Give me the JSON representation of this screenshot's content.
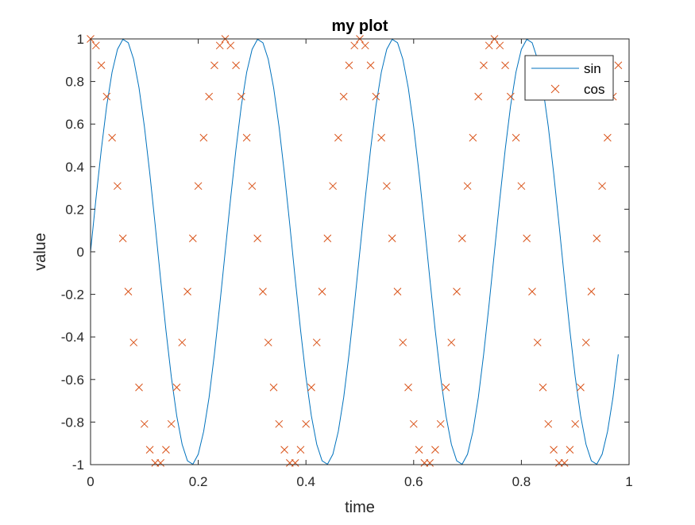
{
  "chart_data": {
    "type": "line",
    "title": "my plot",
    "xlabel": "time",
    "ylabel": "value",
    "xlim": [
      0,
      1
    ],
    "ylim": [
      -1,
      1
    ],
    "xticks": [
      0,
      0.2,
      0.4,
      0.6,
      0.8,
      1
    ],
    "xtick_labels": [
      "0",
      "0.2",
      "0.4",
      "0.6",
      "0.8",
      "1"
    ],
    "yticks": [
      -1,
      -0.8,
      -0.6,
      -0.4,
      -0.2,
      0,
      0.2,
      0.4,
      0.6,
      0.8,
      1
    ],
    "ytick_labels": [
      "-1",
      "-0.8",
      "-0.6",
      "-0.4",
      "-0.2",
      "0",
      "0.2",
      "0.4",
      "0.6",
      "0.8",
      "1"
    ],
    "grid": false,
    "legend": {
      "placement": "top-right",
      "entries": [
        "sin",
        "cos"
      ]
    },
    "series": [
      {
        "name": "sin",
        "style": "line",
        "color": "#0072BD",
        "x": [
          0,
          0.01,
          0.02,
          0.03,
          0.04,
          0.05,
          0.06,
          0.07,
          0.08,
          0.09,
          0.1,
          0.11,
          0.12,
          0.13,
          0.14,
          0.15,
          0.16,
          0.17,
          0.18,
          0.19,
          0.2,
          0.21,
          0.22,
          0.23,
          0.24,
          0.25,
          0.26,
          0.27,
          0.28,
          0.29,
          0.3,
          0.31,
          0.32,
          0.33,
          0.34,
          0.35,
          0.36,
          0.37,
          0.38,
          0.39,
          0.4,
          0.41,
          0.42,
          0.43,
          0.44,
          0.45,
          0.46,
          0.47,
          0.48,
          0.49,
          0.5,
          0.51,
          0.52,
          0.53,
          0.54,
          0.55,
          0.56,
          0.57,
          0.58,
          0.59,
          0.6,
          0.61,
          0.62,
          0.63,
          0.64,
          0.65,
          0.66,
          0.67,
          0.68,
          0.69,
          0.7,
          0.71,
          0.72,
          0.73,
          0.74,
          0.75,
          0.76,
          0.77,
          0.78,
          0.79,
          0.8,
          0.81,
          0.82,
          0.83,
          0.84,
          0.85,
          0.86,
          0.87,
          0.88,
          0.89,
          0.9,
          0.91,
          0.92,
          0.93,
          0.94,
          0.95,
          0.96,
          0.97,
          0.98
        ],
        "y": [
          0,
          0.249,
          0.482,
          0.685,
          0.844,
          0.951,
          0.998,
          0.982,
          0.905,
          0.771,
          0.588,
          0.368,
          0.125,
          -0.125,
          -0.368,
          -0.588,
          -0.771,
          -0.905,
          -0.982,
          -0.998,
          -0.951,
          -0.844,
          -0.685,
          -0.482,
          -0.249,
          0,
          0.249,
          0.482,
          0.685,
          0.844,
          0.951,
          0.998,
          0.982,
          0.905,
          0.771,
          0.588,
          0.368,
          0.125,
          -0.125,
          -0.368,
          -0.588,
          -0.771,
          -0.905,
          -0.982,
          -0.998,
          -0.951,
          -0.844,
          -0.685,
          -0.482,
          -0.249,
          0,
          0.249,
          0.482,
          0.685,
          0.844,
          0.951,
          0.998,
          0.982,
          0.905,
          0.771,
          0.588,
          0.368,
          0.125,
          -0.125,
          -0.368,
          -0.588,
          -0.771,
          -0.905,
          -0.982,
          -0.998,
          -0.951,
          -0.844,
          -0.685,
          -0.482,
          -0.249,
          0,
          0.249,
          0.482,
          0.685,
          0.844,
          0.951,
          0.998,
          0.982,
          0.905,
          0.771,
          0.588,
          0.368,
          0.125,
          -0.125,
          -0.368,
          -0.588,
          -0.771,
          -0.905,
          -0.982,
          -0.998,
          -0.951,
          -0.844,
          -0.685,
          -0.482
        ]
      },
      {
        "name": "cos",
        "style": "marker-x",
        "color": "#D95319",
        "x": [
          0,
          0.01,
          0.02,
          0.03,
          0.04,
          0.05,
          0.06,
          0.07,
          0.08,
          0.09,
          0.1,
          0.11,
          0.12,
          0.13,
          0.14,
          0.15,
          0.16,
          0.17,
          0.18,
          0.19,
          0.2,
          0.21,
          0.22,
          0.23,
          0.24,
          0.25,
          0.26,
          0.27,
          0.28,
          0.29,
          0.3,
          0.31,
          0.32,
          0.33,
          0.34,
          0.35,
          0.36,
          0.37,
          0.38,
          0.39,
          0.4,
          0.41,
          0.42,
          0.43,
          0.44,
          0.45,
          0.46,
          0.47,
          0.48,
          0.49,
          0.5,
          0.51,
          0.52,
          0.53,
          0.54,
          0.55,
          0.56,
          0.57,
          0.58,
          0.59,
          0.6,
          0.61,
          0.62,
          0.63,
          0.64,
          0.65,
          0.66,
          0.67,
          0.68,
          0.69,
          0.7,
          0.71,
          0.72,
          0.73,
          0.74,
          0.75,
          0.76,
          0.77,
          0.78,
          0.79,
          0.8,
          0.81,
          0.82,
          0.83,
          0.84,
          0.85,
          0.86,
          0.87,
          0.88,
          0.89,
          0.9,
          0.91,
          0.92,
          0.93,
          0.94,
          0.95,
          0.96,
          0.97,
          0.98
        ],
        "y": [
          1,
          0.969,
          0.876,
          0.729,
          0.536,
          0.309,
          0.063,
          -0.187,
          -0.426,
          -0.637,
          -0.809,
          -0.93,
          -0.992,
          -0.992,
          -0.93,
          -0.809,
          -0.637,
          -0.426,
          -0.187,
          0.063,
          0.309,
          0.536,
          0.729,
          0.876,
          0.969,
          1,
          0.969,
          0.876,
          0.729,
          0.536,
          0.309,
          0.063,
          -0.187,
          -0.426,
          -0.637,
          -0.809,
          -0.93,
          -0.992,
          -0.992,
          -0.93,
          -0.809,
          -0.637,
          -0.426,
          -0.187,
          0.063,
          0.309,
          0.536,
          0.729,
          0.876,
          0.969,
          1,
          0.969,
          0.876,
          0.729,
          0.536,
          0.309,
          0.063,
          -0.187,
          -0.426,
          -0.637,
          -0.809,
          -0.93,
          -0.992,
          -0.992,
          -0.93,
          -0.809,
          -0.637,
          -0.426,
          -0.187,
          0.063,
          0.309,
          0.536,
          0.729,
          0.876,
          0.969,
          1,
          0.969,
          0.876,
          0.729,
          0.536,
          0.309,
          0.063,
          -0.187,
          -0.426,
          -0.637,
          -0.809,
          -0.93,
          -0.992,
          -0.992,
          -0.93,
          -0.809,
          -0.637,
          -0.426,
          -0.187,
          0.063,
          0.309,
          0.536,
          0.729,
          0.876
        ]
      }
    ]
  }
}
